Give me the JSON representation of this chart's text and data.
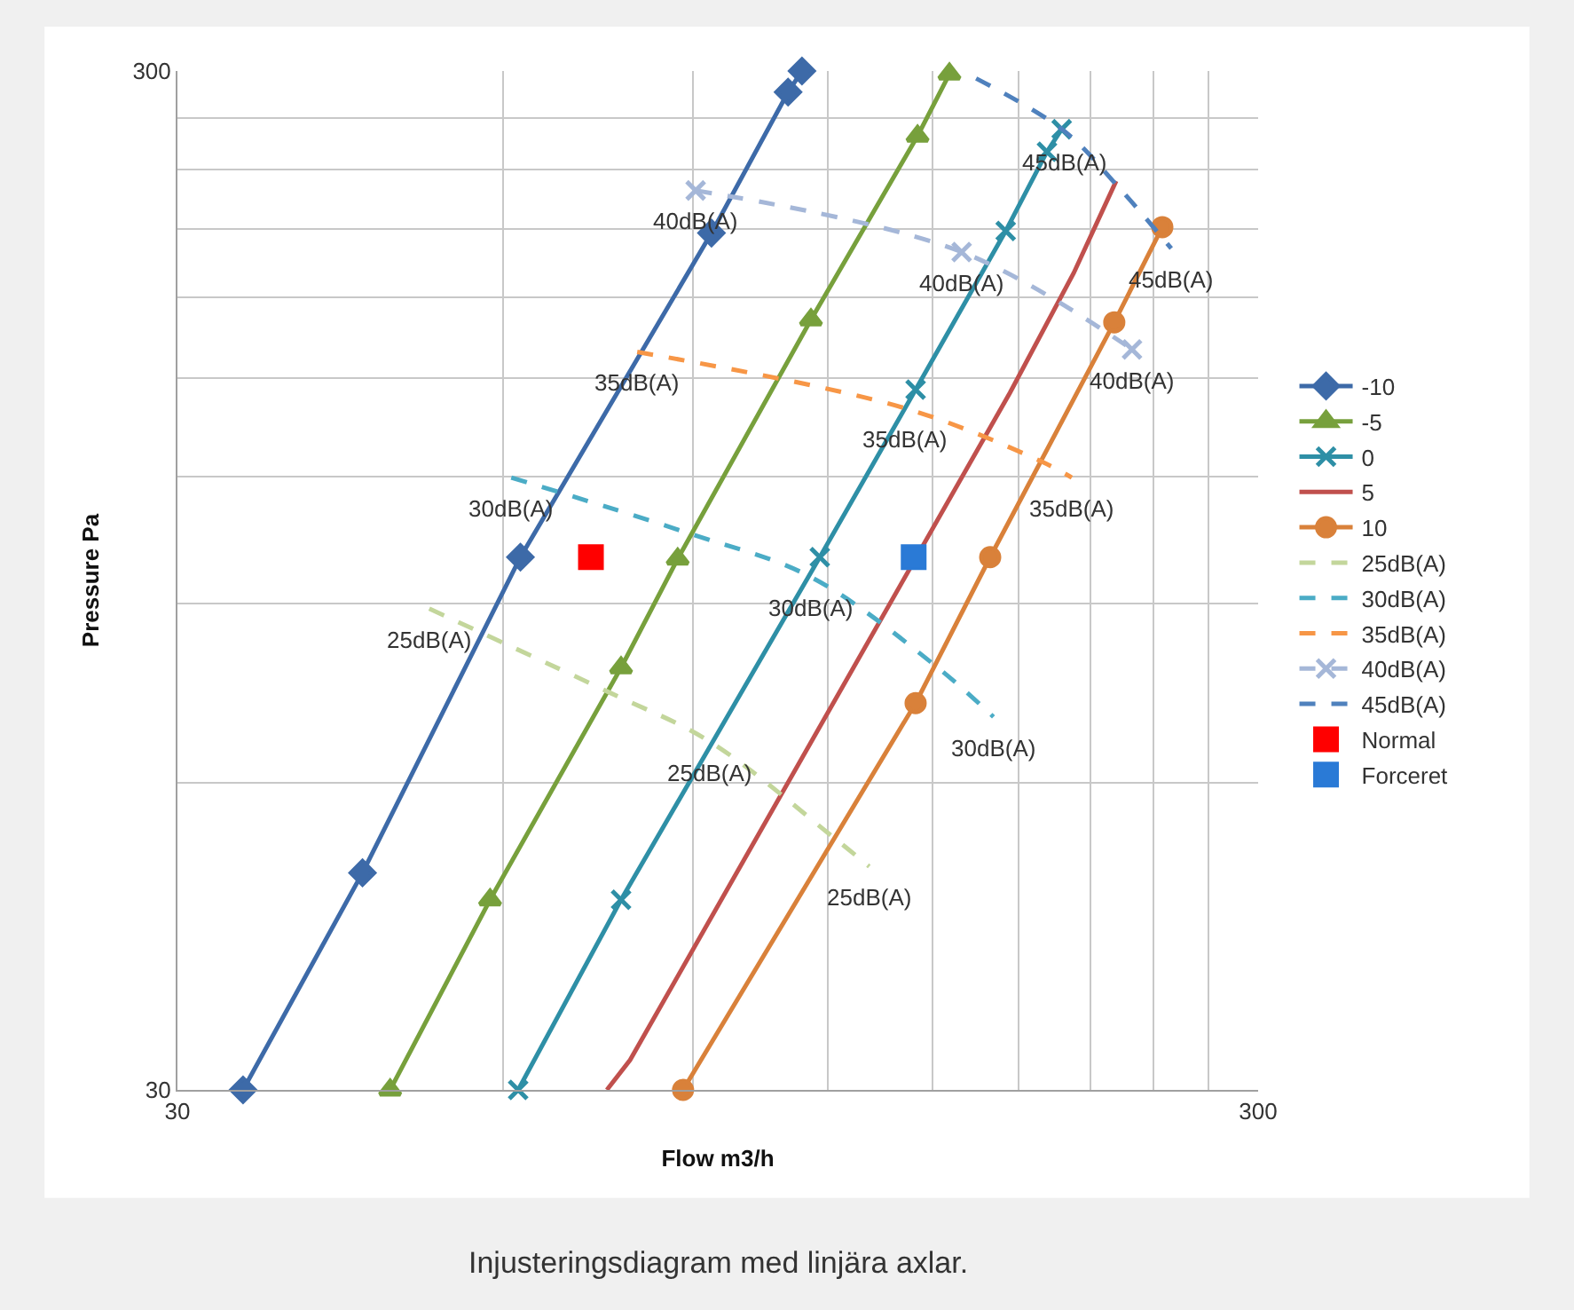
{
  "chart_data": {
    "type": "line",
    "xlabel": "Flow m3/h",
    "ylabel": "Pressure Pa",
    "log": "xy",
    "grid": true,
    "legend": "right",
    "xlim": [
      30,
      300
    ],
    "ylim": [
      30,
      300
    ],
    "xticks": [
      30,
      {
        "value": 60,
        "label": null
      },
      {
        "value": 90,
        "label": null
      },
      {
        "value": 120,
        "label": null
      },
      {
        "value": 150,
        "label": null
      },
      {
        "value": 180,
        "label": null
      },
      {
        "value": 210,
        "label": null
      },
      {
        "value": 240,
        "label": null
      },
      {
        "value": 270,
        "label": null
      },
      300
    ],
    "yticks": [
      30,
      {
        "value": 60,
        "label": null
      },
      {
        "value": 90,
        "label": null
      },
      {
        "value": 120,
        "label": null
      },
      {
        "value": 150,
        "label": null
      },
      {
        "value": 180,
        "label": null
      },
      {
        "value": 210,
        "label": null
      },
      {
        "value": 240,
        "label": null
      },
      {
        "value": 270,
        "label": null
      },
      300
    ],
    "series": [
      {
        "name": "-10",
        "color": "#3d6aa8",
        "marker": "diamond",
        "line_style": "solid",
        "x": [
          34.5,
          44.5,
          62.3,
          93.6,
          110.2,
          113.5
        ],
        "values": [
          30,
          49.0,
          100,
          208,
          286,
          300
        ]
      },
      {
        "name": "-5",
        "color": "#77a03c",
        "marker": "triangle",
        "line_style": "solid",
        "x": [
          47.2,
          58.4,
          77.2,
          87.1,
          115.7,
          145.2,
          155.4
        ],
        "values": [
          30,
          46.1,
          77.9,
          99.6,
          171,
          259,
          298
        ]
      },
      {
        "name": "0",
        "color": "#2e8fa6",
        "marker": "cross",
        "line_style": "solid",
        "x": [
          62.0,
          77.2,
          117.9,
          144.6,
          175.2,
          191.3,
          197.4
        ],
        "values": [
          30,
          46.1,
          100,
          146,
          209,
          250,
          263
        ]
      },
      {
        "name": "5",
        "color": "#c0504d",
        "marker": "none",
        "line_style": "solid",
        "x": [
          74.9,
          78.7,
          176.8,
          202.5,
          221.7
        ],
        "values": [
          30,
          32.1,
          145,
          190,
          234
        ]
      },
      {
        "name": "10",
        "color": "#d9813a",
        "marker": "circle",
        "line_style": "solid",
        "x": [
          88.1,
          144.6,
          169.5,
          220.8,
          244.6
        ],
        "values": [
          30,
          71.9,
          100,
          170,
          210.8
        ]
      },
      {
        "name": "25dB(A)",
        "color": "#c3d69b",
        "marker": "none",
        "line_style": "dashed",
        "x": [
          51.3,
          75.2,
          93.3,
          121.6,
          131.0
        ],
        "values": [
          89.0,
          73.7,
          65.9,
          53.0,
          49.7
        ]
      },
      {
        "name": "30dB(A)",
        "color": "#4bacc6",
        "marker": "none",
        "line_style": "dashed",
        "x": [
          61.1,
          88.8,
          115.7,
          150.7,
          170.7
        ],
        "values": [
          119.7,
          105.7,
          95.6,
          78.3,
          69.7
        ]
      },
      {
        "name": "35dB(A)",
        "color": "#f79646",
        "marker": "none",
        "line_style": "dashed",
        "x": [
          79.9,
          141.4,
          189.1,
          201.7
        ],
        "values": [
          159,
          140,
          124.1,
          119.7
        ]
      },
      {
        "name": "40dB(A)",
        "color": "#a5b7d8",
        "marker": "cross",
        "line_style": "dashed",
        "x": [
          90.5,
          159.5,
          229.3
        ],
        "values": [
          229,
          199.3,
          159.9
        ]
      },
      {
        "name": "45dB(A)",
        "color": "#4f81bd",
        "marker": "none",
        "line_style": "dashed",
        "x": [
          164.5,
          198.6,
          222.6,
          249.3
        ],
        "values": [
          295,
          261.8,
          231,
          200.9
        ]
      },
      {
        "name": "Normal",
        "type": "scatter",
        "color": "#ff0000",
        "marker": "square",
        "x": [
          72.4
        ],
        "values": [
          100
        ]
      },
      {
        "name": "Forceret",
        "type": "scatter",
        "color": "#2a7ad6",
        "marker": "square",
        "x": [
          144.0
        ],
        "values": [
          100
        ]
      }
    ],
    "annotations": [
      {
        "text": "40dB(A)",
        "x": 90.5,
        "y": 229
      },
      {
        "text": "40dB(A)",
        "x": 159.5,
        "y": 199.3
      },
      {
        "text": "40dB(A)",
        "x": 229.3,
        "y": 159.9
      },
      {
        "text": "45dB(A)",
        "x": 198.6,
        "y": 261.8
      },
      {
        "text": "45dB(A)",
        "x": 249.3,
        "y": 200.9
      },
      {
        "text": "35dB(A)",
        "x": 79.9,
        "y": 159
      },
      {
        "text": "35dB(A)",
        "x": 141.4,
        "y": 140
      },
      {
        "text": "35dB(A)",
        "x": 201.7,
        "y": 119.7
      },
      {
        "text": "30dB(A)",
        "x": 61.1,
        "y": 119.7
      },
      {
        "text": "30dB(A)",
        "x": 115.7,
        "y": 95.6
      },
      {
        "text": "30dB(A)",
        "x": 170.7,
        "y": 69.7
      },
      {
        "text": "25dB(A)",
        "x": 51.3,
        "y": 89.0
      },
      {
        "text": "25dB(A)",
        "x": 93.3,
        "y": 65.9
      },
      {
        "text": "25dB(A)",
        "x": 131.0,
        "y": 49.7
      },
      "Injusteringsdiagram med linjära axlar."
    ]
  }
}
